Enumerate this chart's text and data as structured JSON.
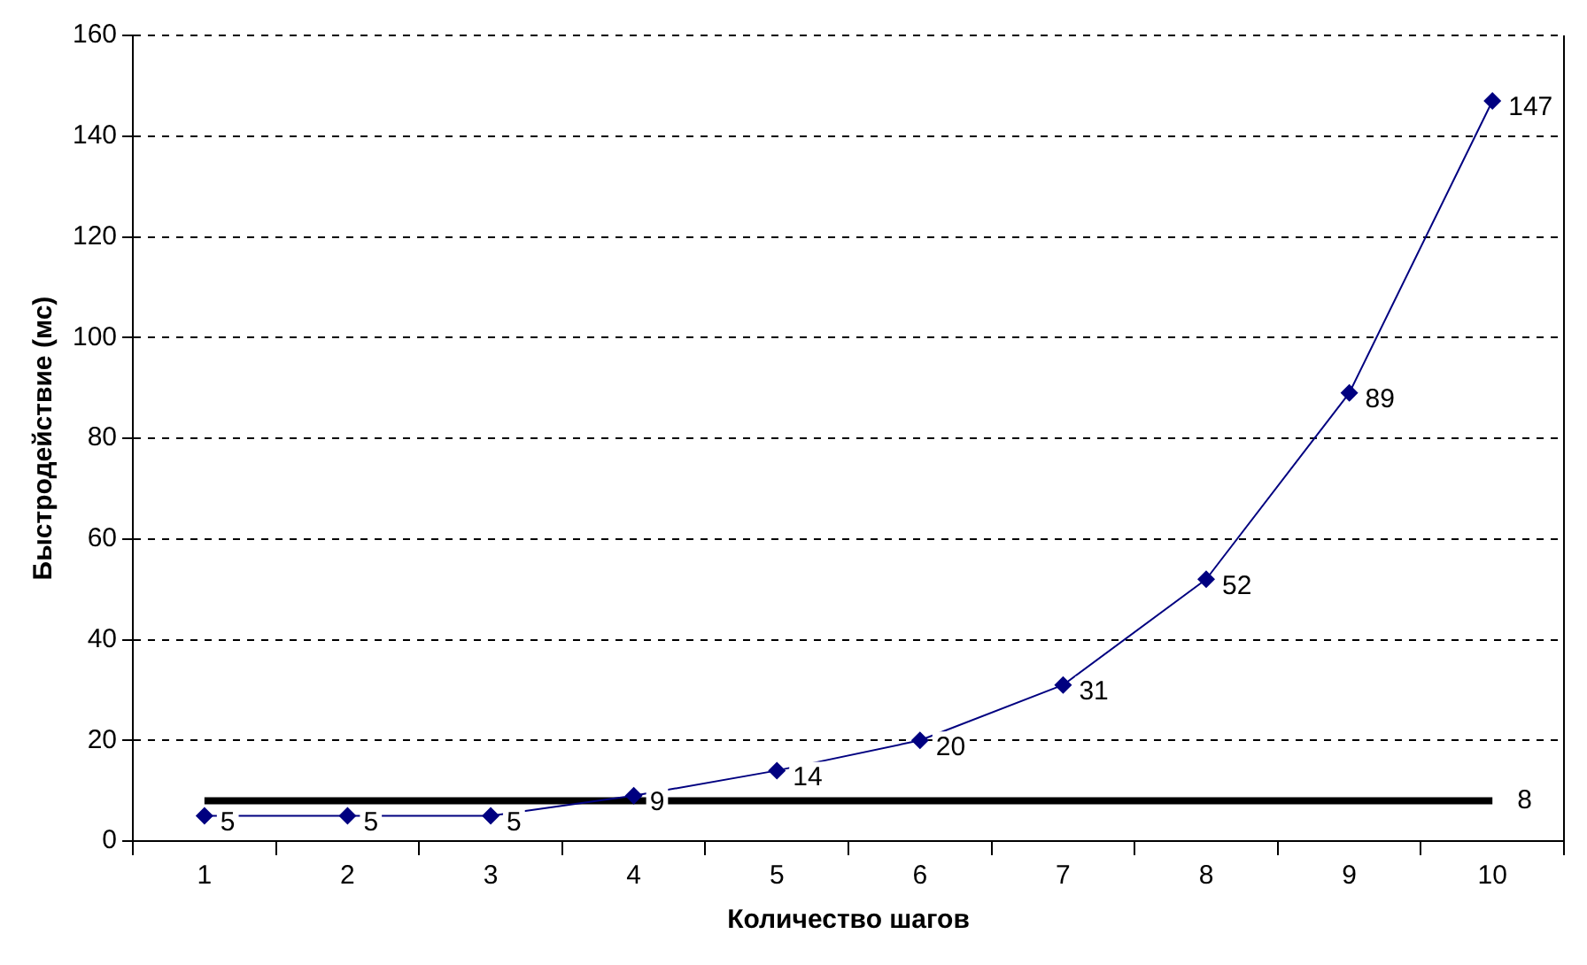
{
  "chart_data": {
    "type": "line",
    "xlabel": "Количество шагов",
    "ylabel": "Быстродействие (мс)",
    "categories": [
      "1",
      "2",
      "3",
      "4",
      "5",
      "6",
      "7",
      "8",
      "9",
      "10"
    ],
    "series": [
      {
        "color": "#000080",
        "marker": "diamond",
        "values": [
          5,
          5,
          5,
          9,
          14,
          20,
          31,
          52,
          89,
          147
        ],
        "value_labels": [
          "5",
          "5",
          "5",
          "9",
          "14",
          "20",
          "31",
          "52",
          "89",
          "147"
        ]
      },
      {
        "color": "#000000",
        "marker": "none",
        "values": [
          8,
          8,
          8,
          8,
          8,
          8,
          8,
          8,
          8,
          8
        ],
        "value_labels": [
          null,
          null,
          null,
          null,
          null,
          null,
          null,
          null,
          null,
          "8"
        ]
      }
    ],
    "ylim": [
      0,
      160
    ],
    "yticks": [
      0,
      20,
      40,
      60,
      80,
      100,
      120,
      140,
      160
    ],
    "grid": "y",
    "legend": false
  }
}
